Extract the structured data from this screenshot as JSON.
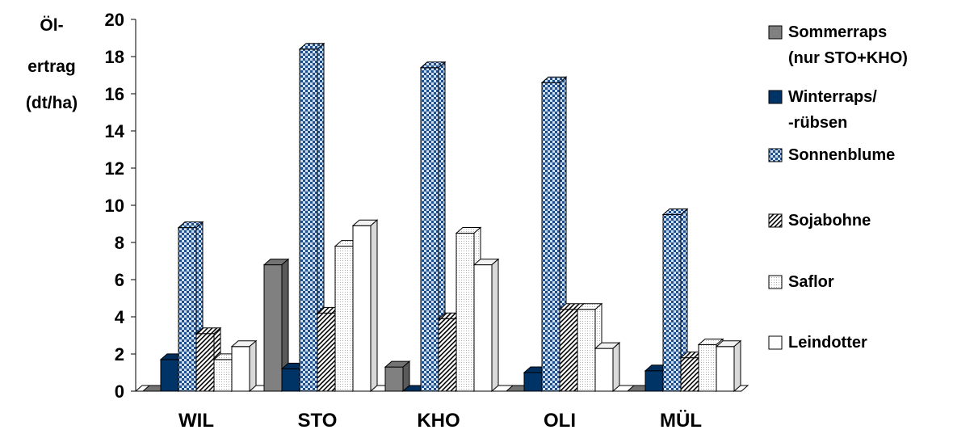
{
  "chart_data": {
    "type": "bar",
    "ylabel_lines": [
      "Öl-",
      "ertrag",
      "(dt/ha)"
    ],
    "categories": [
      "WIL",
      "STO",
      "KHO",
      "OLI",
      "MÜL"
    ],
    "ylim": [
      0,
      20
    ],
    "yticks": [
      "0",
      "2",
      "4",
      "6",
      "8",
      "10",
      "12",
      "14",
      "16",
      "18",
      "20"
    ],
    "grid": false,
    "legend_position": "right",
    "series": [
      {
        "name_lines": [
          "Sommerraps",
          "(nur STO+KHO)"
        ],
        "values": [
          0,
          6.8,
          1.3,
          0,
          0
        ],
        "color": "#808080",
        "pattern": "solid"
      },
      {
        "name_lines": [
          "Winterraps/",
          "-rübsen"
        ],
        "values": [
          1.7,
          1.2,
          0,
          1.0,
          1.1
        ],
        "color": "#003366",
        "pattern": "solid"
      },
      {
        "name_lines": [
          "Sonnenblume"
        ],
        "values": [
          8.8,
          18.4,
          17.4,
          16.6,
          9.5
        ],
        "color": "#1f4e8c",
        "pattern": "checker"
      },
      {
        "name_lines": [
          "Sojabohne"
        ],
        "values": [
          3.1,
          4.2,
          3.9,
          4.4,
          1.8
        ],
        "color": "#ffffff",
        "pattern": "diagonal"
      },
      {
        "name_lines": [
          "Saflor"
        ],
        "values": [
          1.7,
          7.8,
          8.5,
          4.4,
          2.5
        ],
        "color": "#f2f2f2",
        "pattern": "dots"
      },
      {
        "name_lines": [
          "Leindotter"
        ],
        "values": [
          2.4,
          8.9,
          6.8,
          2.3,
          2.4
        ],
        "color": "#ffffff",
        "pattern": "solid"
      }
    ]
  }
}
